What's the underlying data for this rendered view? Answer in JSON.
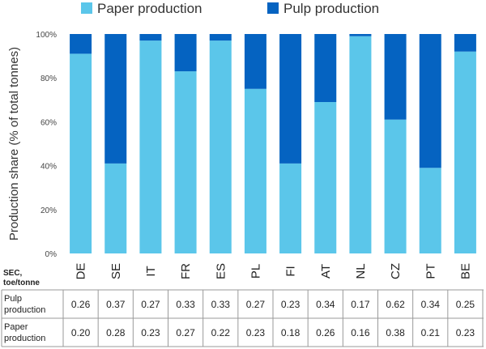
{
  "chart_data": {
    "type": "bar",
    "stacked": true,
    "categories": [
      "DE",
      "SE",
      "IT",
      "FR",
      "ES",
      "PL",
      "FI",
      "AT",
      "NL",
      "CZ",
      "PT",
      "BE"
    ],
    "series": [
      {
        "name": "Paper production",
        "color": "#5bc6ea",
        "values": [
          91,
          41,
          97,
          83,
          97,
          75,
          41,
          69,
          99,
          61,
          39,
          92
        ]
      },
      {
        "name": "Pulp production",
        "color": "#0563c1",
        "values": [
          9,
          59,
          3,
          17,
          3,
          25,
          59,
          31,
          1,
          39,
          61,
          8
        ]
      }
    ],
    "ylabel": "Production share (% of total tonnes)",
    "ylim": [
      0,
      100
    ],
    "yticks": [
      "0%",
      "20%",
      "40%",
      "60%",
      "80%",
      "100%"
    ],
    "legend_position": "top",
    "grid": false
  },
  "sec_table": {
    "header_line1": "SEC,",
    "header_line2": "toe/tonne",
    "rows": [
      {
        "label_line1": "Pulp",
        "label_line2": "production",
        "values": [
          "0.26",
          "0.37",
          "0.27",
          "0.33",
          "0.33",
          "0.27",
          "0.23",
          "0.34",
          "0.17",
          "0.62",
          "0.34",
          "0.25"
        ]
      },
      {
        "label_line1": "Paper",
        "label_line2": "production",
        "values": [
          "0.20",
          "0.28",
          "0.23",
          "0.27",
          "0.22",
          "0.23",
          "0.18",
          "0.26",
          "0.16",
          "0.38",
          "0.21",
          "0.23"
        ]
      }
    ]
  }
}
